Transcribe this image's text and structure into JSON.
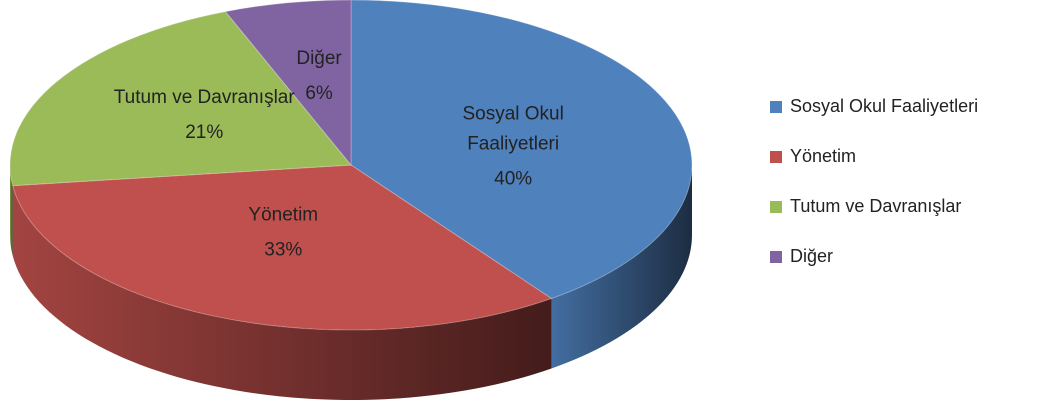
{
  "chart_data": {
    "type": "pie3d",
    "categories": [
      "Sosyal Okul Faaliyetleri",
      "Yönetim",
      "Tutum ve Davranışlar",
      "Diğer"
    ],
    "values": [
      40,
      33,
      21,
      6
    ],
    "value_labels": [
      "40%",
      "33%",
      "21%",
      "6%"
    ],
    "colors": [
      "#4f81bd",
      "#c0504d",
      "#9bbb59",
      "#8064a2"
    ],
    "legend": "right"
  }
}
